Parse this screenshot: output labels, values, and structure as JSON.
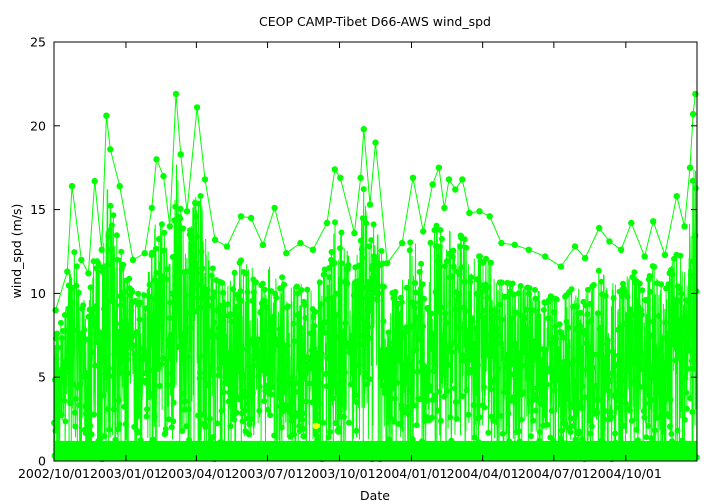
{
  "chart_data": {
    "type": "scatter",
    "title": "CEOP  CAMP-Tibet D66-AWS  wind_spd",
    "xlabel": "Date",
    "ylabel": "wind_spd (m/s)",
    "x_range": [
      "2002-10-01",
      "2004-12-31"
    ],
    "ylim": [
      0,
      25
    ],
    "yticks": [
      0,
      5,
      10,
      15,
      20,
      25
    ],
    "xticks": [
      "2002/10/01",
      "2003/01/01",
      "2003/04/01",
      "2003/07/01",
      "2003/10/01",
      "2004/01/01",
      "2004/04/01",
      "2004/07/01",
      "2004/10/01"
    ],
    "grid": false,
    "legend": "none",
    "series": [
      {
        "color": "#00ff00",
        "marker": "filled-circle",
        "connected": true,
        "points": [
          [
            "2002-10-03",
            9.0
          ],
          [
            "2002-10-18",
            11.3
          ],
          [
            "2002-10-24",
            16.4
          ],
          [
            "2002-11-05",
            12.0
          ],
          [
            "2002-11-14",
            11.2
          ],
          [
            "2002-11-22",
            16.7
          ],
          [
            "2002-12-01",
            12.6
          ],
          [
            "2002-12-07",
            20.6
          ],
          [
            "2002-12-12",
            18.6
          ],
          [
            "2002-12-24",
            16.4
          ],
          [
            "2003-01-10",
            12.0
          ],
          [
            "2003-01-25",
            12.4
          ],
          [
            "2003-02-03",
            15.1
          ],
          [
            "2003-02-09",
            18.0
          ],
          [
            "2003-02-18",
            17.0
          ],
          [
            "2003-02-26",
            14.0
          ],
          [
            "2003-03-06",
            21.9
          ],
          [
            "2003-03-12",
            18.3
          ],
          [
            "2003-03-20",
            14.9
          ],
          [
            "2003-04-02",
            21.1
          ],
          [
            "2003-04-12",
            16.8
          ],
          [
            "2003-04-25",
            13.2
          ],
          [
            "2003-05-10",
            12.8
          ],
          [
            "2003-05-28",
            14.6
          ],
          [
            "2003-06-10",
            14.5
          ],
          [
            "2003-06-25",
            12.9
          ],
          [
            "2003-07-10",
            15.1
          ],
          [
            "2003-07-25",
            12.4
          ],
          [
            "2003-08-12",
            13.0
          ],
          [
            "2003-08-28",
            12.6
          ],
          [
            "2003-09-15",
            14.2
          ],
          [
            "2003-09-25",
            17.4
          ],
          [
            "2003-10-02",
            16.9
          ],
          [
            "2003-10-20",
            13.6
          ],
          [
            "2003-10-28",
            16.9
          ],
          [
            "2003-11-01",
            19.8
          ],
          [
            "2003-11-09",
            15.3
          ],
          [
            "2003-11-16",
            19.0
          ],
          [
            "2003-12-01",
            11.8
          ],
          [
            "2003-12-20",
            13.0
          ],
          [
            "2004-01-03",
            16.9
          ],
          [
            "2004-01-16",
            13.7
          ],
          [
            "2004-01-28",
            16.5
          ],
          [
            "2004-02-05",
            17.5
          ],
          [
            "2004-02-12",
            15.1
          ],
          [
            "2004-02-18",
            16.8
          ],
          [
            "2004-02-26",
            16.2
          ],
          [
            "2004-03-06",
            16.8
          ],
          [
            "2004-03-15",
            14.8
          ],
          [
            "2004-03-28",
            14.9
          ],
          [
            "2004-04-10",
            14.6
          ],
          [
            "2004-04-25",
            13.0
          ],
          [
            "2004-05-12",
            12.9
          ],
          [
            "2004-05-30",
            12.6
          ],
          [
            "2004-06-20",
            12.2
          ],
          [
            "2004-07-10",
            11.6
          ],
          [
            "2004-07-28",
            12.8
          ],
          [
            "2004-08-10",
            12.1
          ],
          [
            "2004-08-28",
            13.9
          ],
          [
            "2004-09-10",
            13.1
          ],
          [
            "2004-09-25",
            12.6
          ],
          [
            "2004-10-08",
            14.2
          ],
          [
            "2004-10-25",
            12.2
          ],
          [
            "2004-11-05",
            14.3
          ],
          [
            "2004-11-20",
            12.3
          ],
          [
            "2004-12-05",
            15.8
          ],
          [
            "2004-12-15",
            14.0
          ],
          [
            "2004-12-22",
            17.5
          ],
          [
            "2004-12-26",
            20.7
          ],
          [
            "2004-12-29",
            21.9
          ]
        ]
      },
      {
        "color": "#ffff00",
        "marker": "filled-circle",
        "connected": false,
        "points": [
          [
            "2003-09-01",
            2.1
          ]
        ]
      }
    ]
  }
}
